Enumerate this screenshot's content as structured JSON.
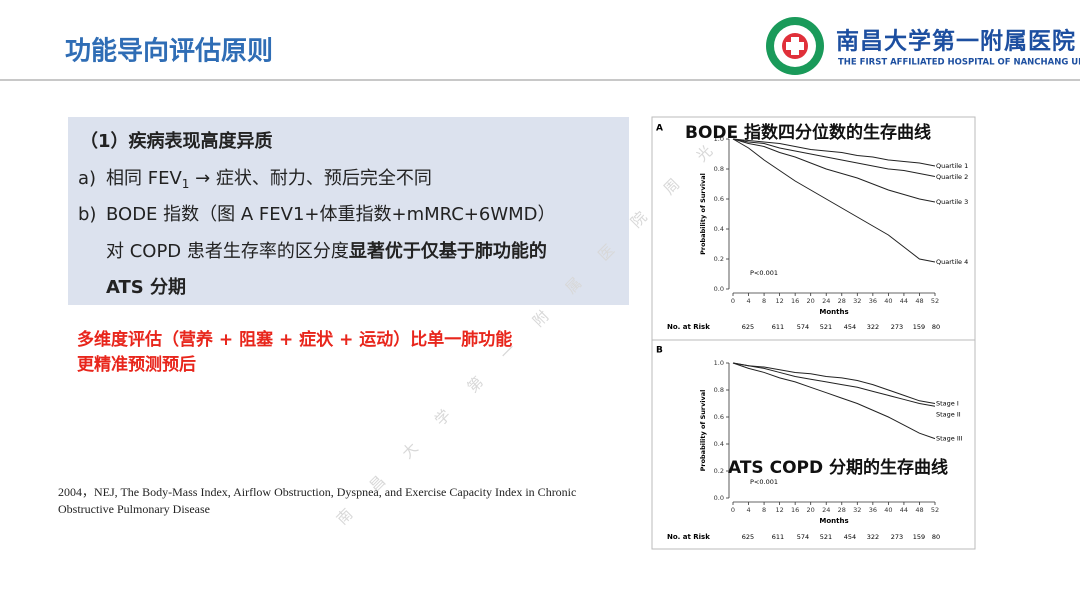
{
  "header": {
    "title": "功能导向评估原则",
    "logo_cn": "南昌大学第一附属医院",
    "logo_en": "THE FIRST AFFILIATED HOSPITAL OF NANCHANG UNIVERSITY"
  },
  "box": {
    "heading": "（1）疾病表现高度异质",
    "item_a": {
      "marker": "a)",
      "text1": "相同 FEV",
      "sub": "1",
      "text2": " → 症状、耐力、预后完全不同"
    },
    "item_b": {
      "marker": "b)",
      "line1": "BODE 指数（图 A FEV1+体重指数+mMRC+6WMD）",
      "line2": "对 COPD 患者生存率的区分度",
      "line2_bold": "显著优于仅基于肺功能的",
      "line3_bold": "ATS 分期"
    }
  },
  "highlight": [
    "多维度评估（营养 + 阻塞 + 症状 + 运动）比单一肺功能",
    "更精准预测预后"
  ],
  "citation": "2004，NEJ, The Body-Mass Index, Airflow Obstruction, Dyspnea, and Exercise Capacity Index in Chronic Obstructive Pulmonary Disease",
  "watermark": [
    "南",
    "昌",
    "大",
    "学",
    "第",
    "一",
    "附",
    "属",
    "医",
    "院",
    "周",
    "光"
  ],
  "figure": {
    "panels": [
      {
        "label": "A",
        "title": "BODE 指数四分位数的生存曲线",
        "y_label": "Probability of Survival",
        "x_label": "Months",
        "p_value": "P<0.001",
        "risk_label": "No. at Risk",
        "risk": [
          625,
          611,
          574,
          521,
          454,
          322,
          273,
          159,
          80
        ],
        "xlim": [
          0,
          52
        ],
        "ylim": [
          0,
          1
        ],
        "xticks": [
          0,
          4,
          8,
          12,
          16,
          20,
          24,
          28,
          32,
          36,
          40,
          44,
          48,
          52
        ],
        "yticks": [
          {
            "value": 0,
            "label": "0.0"
          },
          {
            "value": 0.2,
            "label": "0.2"
          },
          {
            "value": 0.4,
            "label": "0.4"
          },
          {
            "value": 0.6,
            "label": "0.6"
          },
          {
            "value": 0.8,
            "label": "0.8"
          },
          {
            "value": 1,
            "label": "1.0"
          }
        ],
        "x": [
          0,
          4,
          8,
          12,
          16,
          20,
          24,
          28,
          32,
          36,
          40,
          44,
          48,
          52
        ],
        "series": [
          {
            "name": "Quartile 1",
            "values": [
              1,
              0.99,
              0.98,
              0.97,
              0.95,
              0.93,
              0.92,
              0.91,
              0.89,
              0.88,
              0.86,
              0.85,
              0.84,
              0.82
            ]
          },
          {
            "name": "Quartile 2",
            "values": [
              1,
              0.98,
              0.97,
              0.94,
              0.92,
              0.9,
              0.88,
              0.86,
              0.84,
              0.82,
              0.8,
              0.79,
              0.77,
              0.75
            ]
          },
          {
            "name": "Quartile 3",
            "values": [
              1,
              0.97,
              0.95,
              0.91,
              0.88,
              0.84,
              0.8,
              0.77,
              0.74,
              0.7,
              0.66,
              0.63,
              0.6,
              0.58
            ]
          },
          {
            "name": "Quartile 4",
            "values": [
              1,
              0.94,
              0.86,
              0.79,
              0.72,
              0.66,
              0.6,
              0.54,
              0.48,
              0.42,
              0.36,
              0.28,
              0.2,
              0.18
            ]
          }
        ]
      },
      {
        "label": "B",
        "title": "ATS COPD 分期的生存曲线",
        "y_label": "Probability of Survival",
        "x_label": "Months",
        "p_value": "P<0.001",
        "risk_label": "No. at Risk",
        "risk": [
          625,
          611,
          574,
          521,
          454,
          322,
          273,
          159,
          80
        ],
        "xlim": [
          0,
          52
        ],
        "ylim": [
          0,
          1
        ],
        "xticks": [
          0,
          4,
          8,
          12,
          16,
          20,
          24,
          28,
          32,
          36,
          40,
          44,
          48,
          52
        ],
        "yticks": [
          {
            "value": 0,
            "label": "0.0"
          },
          {
            "value": 0.2,
            "label": "0.2"
          },
          {
            "value": 0.4,
            "label": "0.4"
          },
          {
            "value": 0.6,
            "label": "0.6"
          },
          {
            "value": 0.8,
            "label": "0.8"
          },
          {
            "value": 1,
            "label": "1.0"
          }
        ],
        "x": [
          0,
          4,
          8,
          12,
          16,
          20,
          24,
          28,
          32,
          36,
          40,
          44,
          48,
          52
        ],
        "series": [
          {
            "name": "Stage I",
            "values": [
              1,
              0.98,
              0.97,
              0.95,
              0.93,
              0.92,
              0.9,
              0.89,
              0.87,
              0.84,
              0.8,
              0.76,
              0.72,
              0.7
            ]
          },
          {
            "name": "Stage II",
            "values": [
              1,
              0.98,
              0.96,
              0.93,
              0.9,
              0.88,
              0.86,
              0.84,
              0.82,
              0.79,
              0.76,
              0.73,
              0.7,
              0.68
            ]
          },
          {
            "name": "Stage III",
            "values": [
              1,
              0.96,
              0.93,
              0.89,
              0.86,
              0.82,
              0.78,
              0.74,
              0.7,
              0.65,
              0.6,
              0.54,
              0.48,
              0.44
            ]
          }
        ]
      }
    ]
  }
}
